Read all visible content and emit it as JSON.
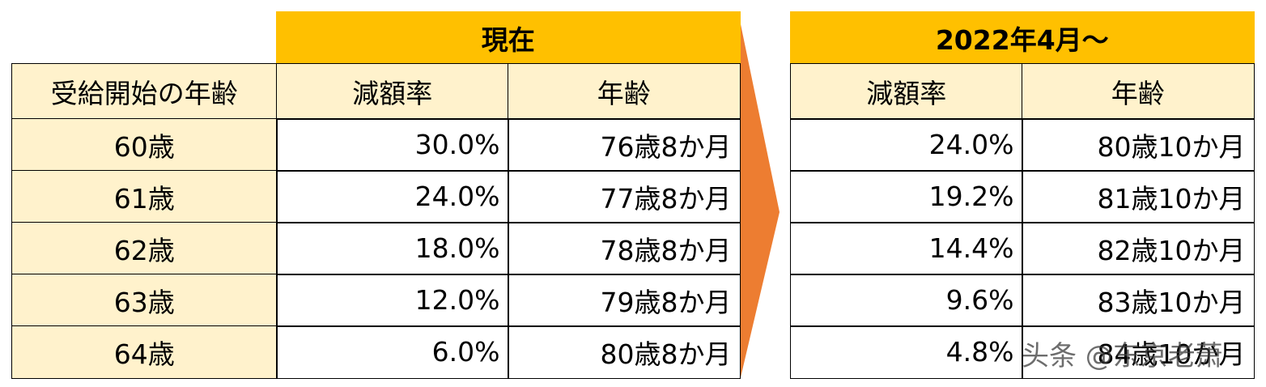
{
  "left_table": {
    "group_header": "現在",
    "header": [
      "受給開始の年齢",
      "減額率",
      "年齢"
    ],
    "rows": [
      [
        "60歳",
        "30.0%",
        "76歳8か月"
      ],
      [
        "61歳",
        "24.0%",
        "77歳8か月"
      ],
      [
        "62歳",
        "18.0%",
        "78歳8か月"
      ],
      [
        "63歳",
        "12.0%",
        "79歳8か月"
      ],
      [
        "64歳",
        "6.0%",
        "80歳8か月"
      ]
    ]
  },
  "right_table": {
    "group_header": "2022年4月～",
    "header": [
      "減額率",
      "年齢"
    ],
    "rows": [
      [
        "24.0%",
        "80歳10か月"
      ],
      [
        "19.2%",
        "81歳10か月"
      ],
      [
        "14.4%",
        "82歳10か月"
      ],
      [
        "9.6%",
        "83歳10か月"
      ],
      [
        "4.8%",
        "84歳10か月"
      ]
    ]
  },
  "watermark": "头条 @东京老萧"
}
